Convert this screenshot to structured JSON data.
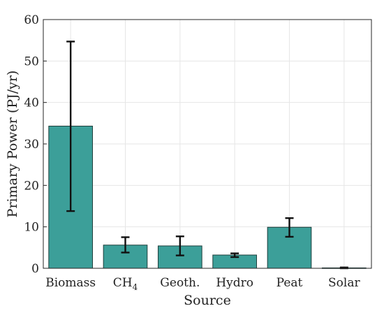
{
  "chart_data": {
    "type": "bar",
    "title": "",
    "xlabel": "Source",
    "ylabel": "Primary Power (PJ/yr)",
    "categories": [
      "Biomass",
      "CH4",
      "Geoth.",
      "Hydro",
      "Peat",
      "Solar"
    ],
    "values": [
      34.3,
      5.6,
      5.4,
      3.2,
      9.9,
      0.1
    ],
    "error_low": [
      13.8,
      3.8,
      3.1,
      2.7,
      7.6,
      0.0
    ],
    "error_high": [
      54.7,
      7.5,
      7.7,
      3.6,
      12.1,
      0.2
    ],
    "ylim": [
      0,
      60
    ],
    "yticks": [
      0,
      10,
      20,
      30,
      40,
      50,
      60
    ],
    "grid": true,
    "bar_color": "#3c9f99",
    "error_bar_color": "#111111"
  }
}
